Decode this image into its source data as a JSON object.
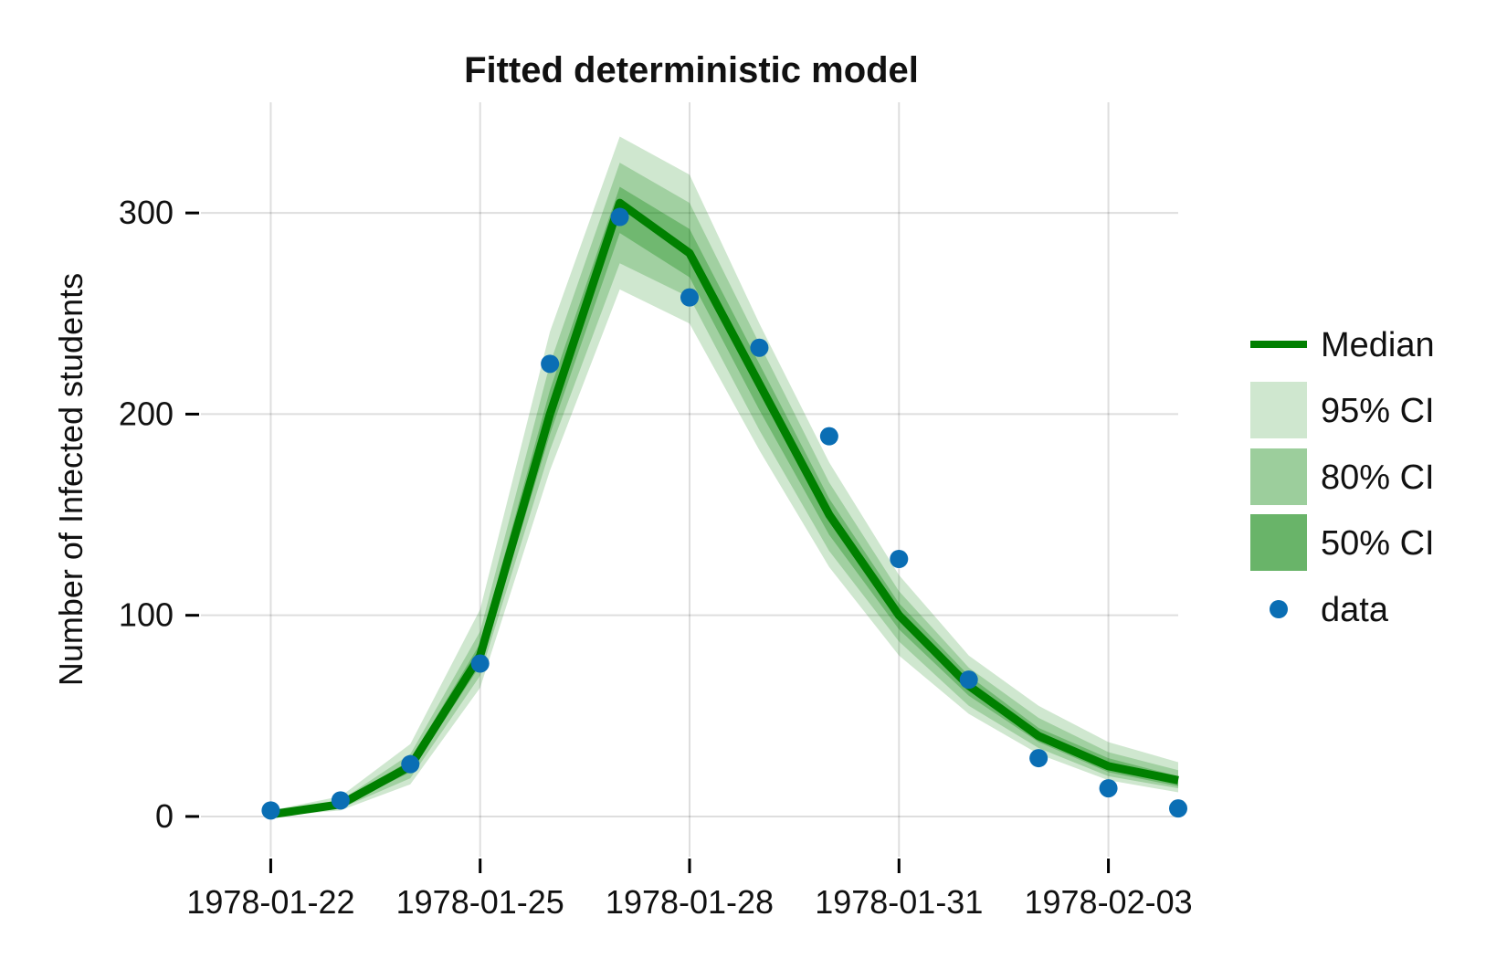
{
  "chart_data": {
    "type": "line",
    "title": "Fitted deterministic model",
    "xlabel": "",
    "ylabel": "Number of Infected students",
    "x_dates": [
      "1978-01-22",
      "1978-01-23",
      "1978-01-24",
      "1978-01-25",
      "1978-01-26",
      "1978-01-27",
      "1978-01-28",
      "1978-01-29",
      "1978-01-30",
      "1978-01-31",
      "1978-02-01",
      "1978-02-02",
      "1978-02-03",
      "1978-02-04"
    ],
    "x_ticks": [
      "1978-01-22",
      "1978-01-25",
      "1978-01-28",
      "1978-01-31",
      "1978-02-03"
    ],
    "x_tick_labels": [
      "1978-01-22",
      "1978-01-25",
      "1978-01-28",
      "1978-01-31",
      "1978-02-03"
    ],
    "y_ticks": [
      0,
      100,
      200,
      300
    ],
    "y_tick_labels": [
      "0",
      "100",
      "200",
      "300"
    ],
    "ylim": [
      -20,
      355
    ],
    "xlim": [
      "1978-01-21",
      "1978-02-04"
    ],
    "grid": true,
    "legend_position": "right",
    "series": [
      {
        "name": "Median",
        "kind": "line",
        "color": "#008000",
        "values": [
          1,
          6,
          25,
          80,
          200,
          305,
          280,
          215,
          150,
          100,
          65,
          40,
          25,
          18
        ]
      },
      {
        "name": "95% CI",
        "kind": "band",
        "color": "#008000",
        "opacity": 0.19,
        "lower": [
          0,
          3,
          16,
          64,
          172,
          262,
          245,
          182,
          124,
          80,
          51,
          31,
          18,
          12
        ],
        "upper": [
          3,
          10,
          36,
          103,
          241,
          338,
          319,
          245,
          176,
          120,
          80,
          55,
          37,
          27
        ]
      },
      {
        "name": "80% CI",
        "kind": "band",
        "color": "#008000",
        "opacity": 0.22,
        "lower": [
          0,
          4,
          19,
          70,
          182,
          275,
          258,
          192,
          132,
          87,
          55,
          34,
          20,
          14
        ],
        "upper": [
          2,
          8,
          31,
          92,
          225,
          325,
          305,
          235,
          166,
          112,
          74,
          49,
          32,
          23
        ]
      },
      {
        "name": "50% CI",
        "kind": "band",
        "color": "#008000",
        "opacity": 0.3,
        "lower": [
          0,
          5,
          22,
          75,
          190,
          290,
          268,
          202,
          140,
          93,
          60,
          37,
          22,
          15
        ],
        "upper": [
          2,
          7,
          28,
          86,
          212,
          313,
          292,
          225,
          158,
          106,
          70,
          44,
          29,
          20
        ]
      },
      {
        "name": "data",
        "kind": "scatter",
        "color": "#0a6eb4",
        "values": [
          3,
          8,
          26,
          76,
          225,
          298,
          258,
          233,
          189,
          128,
          68,
          29,
          14,
          4
        ]
      }
    ]
  }
}
